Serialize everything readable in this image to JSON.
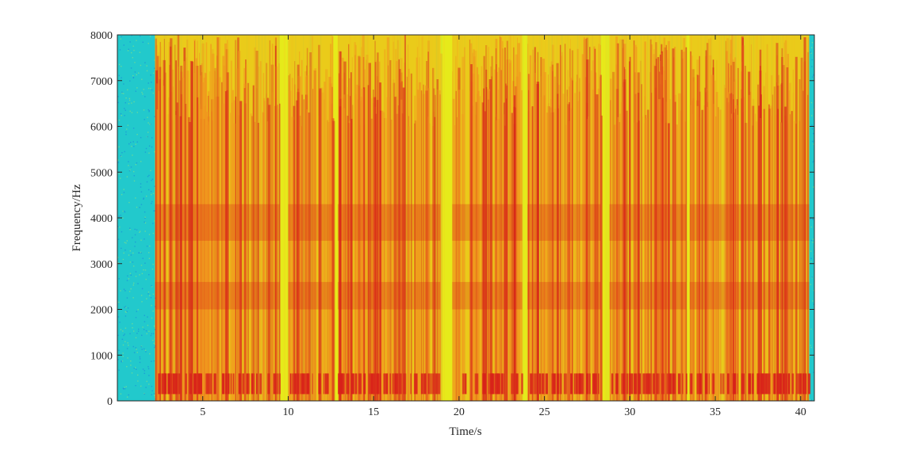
{
  "chart_data": {
    "type": "heatmap",
    "title": "",
    "xlabel": "Time/s",
    "ylabel": "Frequency/Hz",
    "xlim": [
      0,
      40.8
    ],
    "ylim": [
      0,
      8000
    ],
    "xticks": [
      5,
      10,
      15,
      20,
      25,
      30,
      35,
      40
    ],
    "yticks": [
      0,
      1000,
      2000,
      3000,
      4000,
      5000,
      6000,
      7000,
      8000
    ],
    "colormap": "jet",
    "grid": false,
    "legend": "none",
    "silence_intervals_s": [
      [
        0,
        2.2
      ],
      [
        40.5,
        40.8
      ]
    ],
    "speech_segments_s": [
      [
        2.2,
        9.5
      ],
      [
        10.0,
        12.6
      ],
      [
        12.9,
        18.9
      ],
      [
        19.6,
        23.7
      ],
      [
        24.0,
        28.3
      ],
      [
        28.8,
        33.3
      ],
      [
        33.5,
        40.5
      ]
    ],
    "low_band_hz": [
      150,
      600
    ],
    "formant_bands_hz": [
      [
        2000,
        2600
      ],
      [
        3500,
        4300
      ]
    ],
    "colors": {
      "silence": "#22c9cc",
      "background": "#e6ea1a",
      "speech_high": "#f1931e",
      "speech_peak": "#d8231a"
    }
  }
}
